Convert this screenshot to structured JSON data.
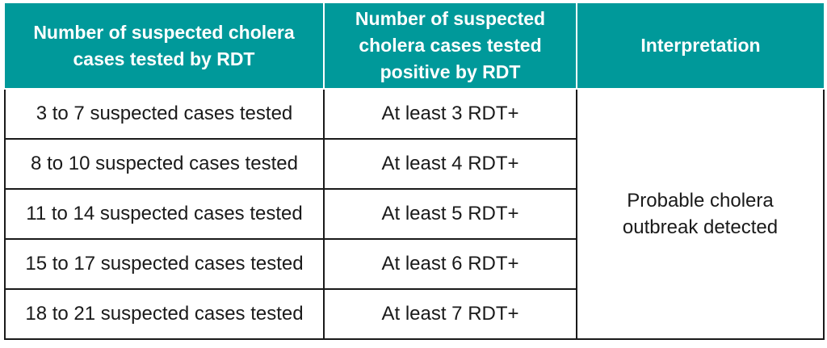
{
  "table": {
    "headers": [
      "Number of suspected cholera cases tested by RDT",
      "Number of suspected cholera cases tested positive by RDT",
      "Interpretation"
    ],
    "rows": [
      {
        "tested": "3 to 7 suspected cases tested",
        "positive": "At least 3 RDT+"
      },
      {
        "tested": "8 to 10 suspected cases tested",
        "positive": "At least 4 RDT+"
      },
      {
        "tested": "11 to 14 suspected cases tested",
        "positive": "At least 5 RDT+"
      },
      {
        "tested": "15 to 17 suspected cases tested",
        "positive": "At least 6 RDT+"
      },
      {
        "tested": "18 to 21 suspected cases tested",
        "positive": "At least 7 RDT+"
      }
    ],
    "interpretation": "Probable cholera outbreak detected"
  },
  "colors": {
    "header_bg": "#00999a",
    "header_text": "#ffffff",
    "border": "#1a1a1a"
  }
}
